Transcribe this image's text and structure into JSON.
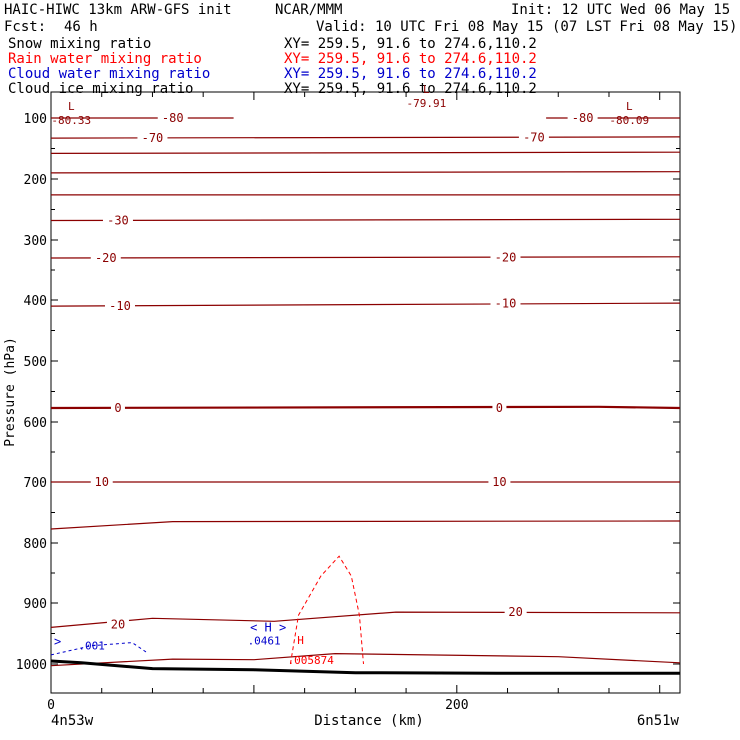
{
  "header": {
    "title_left": "HAIC-HIWC 13km ARW-GFS init",
    "title_mid": "NCAR/MMM",
    "init": "Init: 12 UTC Wed 06 May 15",
    "fcst_label": "Fcst:",
    "fcst_value": "46 h",
    "valid": "Valid: 10 UTC Fri 08 May 15 (07 LST Fri 08 May 15)"
  },
  "fields": [
    {
      "name": "Snow mixing ratio",
      "xy": "XY= 259.5, 91.6 to 274.6,110.2",
      "color": "#000000"
    },
    {
      "name": "Rain water mixing ratio",
      "xy": "XY= 259.5, 91.6 to 274.6,110.2",
      "color": "#ff0000"
    },
    {
      "name": "Cloud water mixing ratio",
      "xy": "XY= 259.5, 91.6 to 274.6,110.2",
      "color": "#0000cc"
    },
    {
      "name": "Cloud ice mixing ratio",
      "xy": "XY= 259.5, 91.6 to 274.6,110.2",
      "color": "#000000"
    }
  ],
  "axes": {
    "ylabel": "Pressure (hPa)",
    "xlabel": "Distance (km)",
    "left_endpoint": "4n53w",
    "right_endpoint": "6n51w"
  },
  "chart_data": {
    "type": "cross-section contour",
    "x_range": [
      0,
      310
    ],
    "y_range_hpa": [
      1050,
      60
    ],
    "x_ticks": [
      0,
      200
    ],
    "y_ticks": [
      100,
      200,
      300,
      400,
      500,
      600,
      700,
      800,
      900,
      1000
    ],
    "colors": {
      "temperature": "#8b0000",
      "rain": "#ff0000",
      "cloud_water": "#0000cc",
      "terrain": "#000000"
    },
    "temperature_isotherms": [
      {
        "value": -80,
        "p": [
          {
            "x": 0,
            "p": 100
          },
          {
            "x": 90,
            "p": 100
          }
        ],
        "labels": [
          {
            "text": "-80",
            "x": 60,
            "p": 100
          }
        ]
      },
      {
        "value": -80,
        "p": [
          {
            "x": 244,
            "p": 100
          },
          {
            "x": 310,
            "p": 100
          }
        ],
        "labels": [
          {
            "text": "-80",
            "x": 262,
            "p": 100
          }
        ]
      },
      {
        "value": -70,
        "p": [
          {
            "x": 0,
            "p": 133
          },
          {
            "x": 310,
            "p": 131
          }
        ],
        "labels": [
          {
            "text": "-70",
            "x": 50,
            "p": 133
          },
          {
            "text": "-70",
            "x": 238,
            "p": 132
          }
        ]
      },
      {
        "value": -60,
        "p": [
          {
            "x": 0,
            "p": 158
          },
          {
            "x": 310,
            "p": 156
          }
        ],
        "labels": []
      },
      {
        "value": -50,
        "p": [
          {
            "x": 0,
            "p": 190
          },
          {
            "x": 310,
            "p": 188
          }
        ],
        "labels": []
      },
      {
        "value": -40,
        "p": [
          {
            "x": 0,
            "p": 226
          },
          {
            "x": 310,
            "p": 226
          }
        ],
        "labels": []
      },
      {
        "value": -30,
        "p": [
          {
            "x": 0,
            "p": 268
          },
          {
            "x": 310,
            "p": 266
          }
        ],
        "labels": [
          {
            "text": "-30",
            "x": 33,
            "p": 268
          }
        ]
      },
      {
        "value": -20,
        "p": [
          {
            "x": 0,
            "p": 330
          },
          {
            "x": 310,
            "p": 328
          }
        ],
        "labels": [
          {
            "text": "-20",
            "x": 27,
            "p": 330
          },
          {
            "text": "-20",
            "x": 224,
            "p": 329
          }
        ]
      },
      {
        "value": -10,
        "p": [
          {
            "x": 0,
            "p": 410
          },
          {
            "x": 310,
            "p": 405
          }
        ],
        "labels": [
          {
            "text": "-10",
            "x": 34,
            "p": 410
          },
          {
            "text": "-10",
            "x": 224,
            "p": 406
          }
        ]
      },
      {
        "value": 0,
        "p": [
          {
            "x": 0,
            "p": 577
          },
          {
            "x": 270,
            "p": 575
          },
          {
            "x": 310,
            "p": 577
          }
        ],
        "labels": [
          {
            "text": "0",
            "x": 33,
            "p": 577
          },
          {
            "text": "0",
            "x": 221,
            "p": 577
          }
        ]
      },
      {
        "value": 10,
        "p": [
          {
            "x": 0,
            "p": 700
          },
          {
            "x": 310,
            "p": 700
          }
        ],
        "labels": [
          {
            "text": "10",
            "x": 25,
            "p": 700
          },
          {
            "text": "10",
            "x": 221,
            "p": 700
          }
        ]
      },
      {
        "value": 15,
        "p": [
          {
            "x": 0,
            "p": 777
          },
          {
            "x": 60,
            "p": 765
          },
          {
            "x": 310,
            "p": 764
          }
        ],
        "labels": []
      },
      {
        "value": 20,
        "p": [
          {
            "x": 0,
            "p": 940
          },
          {
            "x": 50,
            "p": 925
          },
          {
            "x": 110,
            "p": 930
          },
          {
            "x": 170,
            "p": 915
          },
          {
            "x": 310,
            "p": 916
          }
        ],
        "labels": [
          {
            "text": "20",
            "x": 33,
            "p": 935
          },
          {
            "text": "20",
            "x": 229,
            "p": 915
          }
        ]
      },
      {
        "value": 25,
        "p": [
          {
            "x": 0,
            "p": 1003
          },
          {
            "x": 60,
            "p": 992
          },
          {
            "x": 100,
            "p": 993
          },
          {
            "x": 140,
            "p": 983
          },
          {
            "x": 250,
            "p": 988
          },
          {
            "x": 310,
            "p": 998
          }
        ],
        "labels": []
      }
    ],
    "low_centers": [
      {
        "symbol": "L",
        "value": "-80.33",
        "x": 10,
        "p": 97
      },
      {
        "symbol": "L",
        "value": "-79.91",
        "x": 185,
        "p": 71
      },
      {
        "symbol": "L",
        "value": "-80.09",
        "x": 285,
        "p": 97
      }
    ],
    "rain_water_contour": {
      "label": ".005874",
      "points": [
        {
          "x": 118,
          "p": 1000
        },
        {
          "x": 122,
          "p": 920
        },
        {
          "x": 133,
          "p": 855
        },
        {
          "x": 142,
          "p": 822
        },
        {
          "x": 148,
          "p": 855
        },
        {
          "x": 152,
          "p": 920
        },
        {
          "x": 154,
          "p": 1000
        }
      ]
    },
    "cloud_water": {
      "high_symbol": "H",
      "high_value": ".0461",
      "high_at": {
        "x": 108,
        "p": 958
      },
      "contour_label": ".001",
      "contour_points": [
        {
          "x": 0,
          "p": 985
        },
        {
          "x": 20,
          "p": 970
        },
        {
          "x": 40,
          "p": 965
        },
        {
          "x": 48,
          "p": 983
        }
      ]
    },
    "rain_labels": [
      {
        "text": "H",
        "x": 123,
        "p": 967
      }
    ],
    "terrain": [
      {
        "x": 0,
        "p": 995
      },
      {
        "x": 15,
        "p": 998
      },
      {
        "x": 50,
        "p": 1008
      },
      {
        "x": 100,
        "p": 1010
      },
      {
        "x": 150,
        "p": 1015
      },
      {
        "x": 220,
        "p": 1016
      },
      {
        "x": 310,
        "p": 1016
      }
    ]
  }
}
